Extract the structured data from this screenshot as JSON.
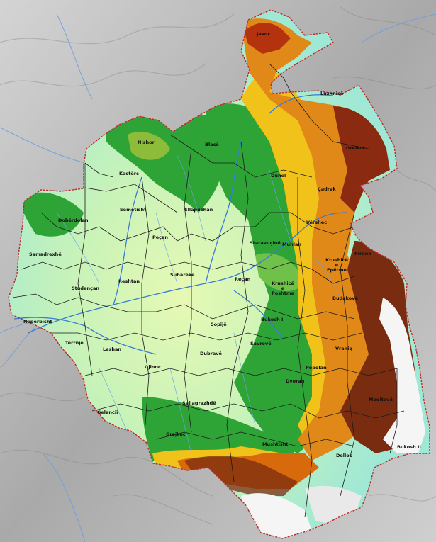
{
  "map": {
    "villages": [
      {
        "id": "javor",
        "name": "Javor"
      },
      {
        "id": "luzhnice",
        "name": "Luzhnicë"
      },
      {
        "id": "nishor",
        "name": "Nishor"
      },
      {
        "id": "blace",
        "name": "Blacë"
      },
      {
        "id": "greikoc",
        "name": "Greikoc"
      },
      {
        "id": "kasterc",
        "name": "Kastërc"
      },
      {
        "id": "duhel",
        "name": "Duhël"
      },
      {
        "id": "cadrak",
        "name": "Çadrak"
      },
      {
        "id": "semetisht",
        "name": "Semetisht"
      },
      {
        "id": "sllapuzhan",
        "name": "Sllapuzhan"
      },
      {
        "id": "doberdolan",
        "name": "Dobërdolan"
      },
      {
        "id": "virishec",
        "name": "Vërshec"
      },
      {
        "id": "pecan",
        "name": "Peçan"
      },
      {
        "id": "staravucine",
        "name": "Staravuçinë"
      },
      {
        "id": "muhlan",
        "name": "Muhlan"
      },
      {
        "id": "samadrexhe",
        "name": "Samadrexhë"
      },
      {
        "id": "pirane",
        "name": "Pirane"
      },
      {
        "id": "krushice-e-eperme",
        "name": "Krushicë e Epërme"
      },
      {
        "id": "suhareke",
        "name": "Suharekë"
      },
      {
        "id": "reshtan",
        "name": "Reshtan"
      },
      {
        "id": "recan",
        "name": "Reçan"
      },
      {
        "id": "studencan",
        "name": "Studençan"
      },
      {
        "id": "krushice-e-poshtme",
        "name": "Krushicë e Poshtme"
      },
      {
        "id": "budakove",
        "name": "Budakovë"
      },
      {
        "id": "neperbisht",
        "name": "Nëpërbisht"
      },
      {
        "id": "bukosh-i",
        "name": "Bukosh I"
      },
      {
        "id": "sopije",
        "name": "Sopijë"
      },
      {
        "id": "termje",
        "name": "Tërrnje"
      },
      {
        "id": "leshan",
        "name": "Leshan"
      },
      {
        "id": "savrove",
        "name": "Savrovë"
      },
      {
        "id": "dubrave",
        "name": "Dubravë"
      },
      {
        "id": "vraniq",
        "name": "Vraniq"
      },
      {
        "id": "popolan",
        "name": "Popolan"
      },
      {
        "id": "gjinoc",
        "name": "Gjinoc"
      },
      {
        "id": "dvoran",
        "name": "Dvoran"
      },
      {
        "id": "sallagrazhde",
        "name": "Sallagrazhdë"
      },
      {
        "id": "maqitevë",
        "name": "Maqitevë"
      },
      {
        "id": "gelancii",
        "name": "Gelancii"
      },
      {
        "id": "grejkoc",
        "name": "Grejkoc"
      },
      {
        "id": "mushtisht",
        "name": "Mushtisht"
      },
      {
        "id": "delloc",
        "name": "Delloc"
      },
      {
        "id": "bukosh-ii",
        "name": "Bukosh II"
      }
    ],
    "colors": {
      "lowland": "#a8f0e0",
      "plain": "#d6f7a8",
      "forest": "#2fa436",
      "hill": "#f1c21a",
      "highland": "#d86a0c",
      "mountain": "#7a2c10",
      "peak": "#f7f7f7",
      "boundary": "#c2282a",
      "village_border": "#1a1a1a",
      "river": "#3a7ad8",
      "hillshade": "#bdbdbd"
    }
  }
}
